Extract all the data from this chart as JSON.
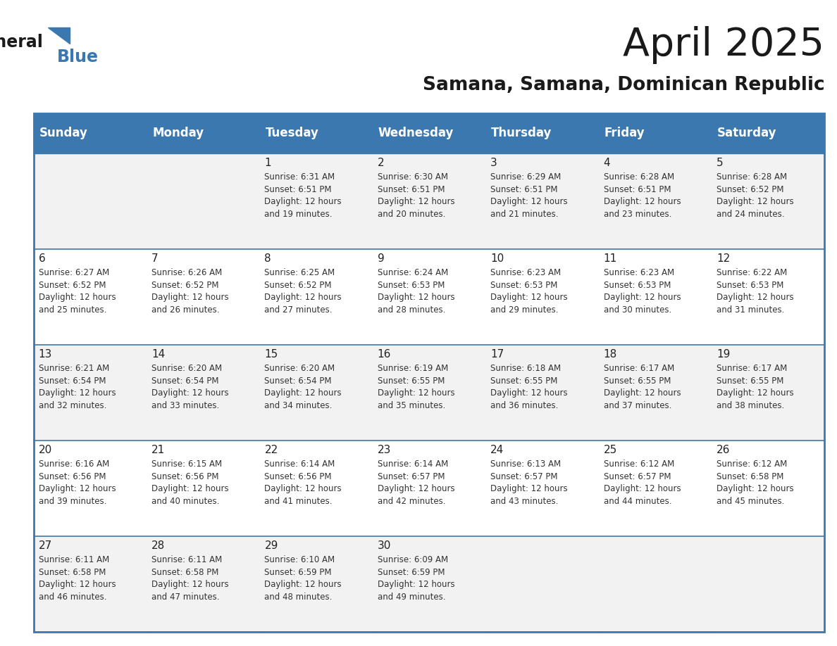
{
  "title": "April 2025",
  "subtitle": "Samana, Samana, Dominican Republic",
  "header_bg": "#3B78B0",
  "header_text_color": "#FFFFFF",
  "cell_bg_light": "#F2F2F2",
  "cell_bg_white": "#FFFFFF",
  "text_color": "#333333",
  "border_color": "#3B78B0",
  "days_of_week": [
    "Sunday",
    "Monday",
    "Tuesday",
    "Wednesday",
    "Thursday",
    "Friday",
    "Saturday"
  ],
  "weeks": [
    [
      {
        "day": "",
        "sunrise": "",
        "sunset": "",
        "daylight": ""
      },
      {
        "day": "",
        "sunrise": "",
        "sunset": "",
        "daylight": ""
      },
      {
        "day": "1",
        "sunrise": "Sunrise: 6:31 AM",
        "sunset": "Sunset: 6:51 PM",
        "daylight": "Daylight: 12 hours\nand 19 minutes."
      },
      {
        "day": "2",
        "sunrise": "Sunrise: 6:30 AM",
        "sunset": "Sunset: 6:51 PM",
        "daylight": "Daylight: 12 hours\nand 20 minutes."
      },
      {
        "day": "3",
        "sunrise": "Sunrise: 6:29 AM",
        "sunset": "Sunset: 6:51 PM",
        "daylight": "Daylight: 12 hours\nand 21 minutes."
      },
      {
        "day": "4",
        "sunrise": "Sunrise: 6:28 AM",
        "sunset": "Sunset: 6:51 PM",
        "daylight": "Daylight: 12 hours\nand 23 minutes."
      },
      {
        "day": "5",
        "sunrise": "Sunrise: 6:28 AM",
        "sunset": "Sunset: 6:52 PM",
        "daylight": "Daylight: 12 hours\nand 24 minutes."
      }
    ],
    [
      {
        "day": "6",
        "sunrise": "Sunrise: 6:27 AM",
        "sunset": "Sunset: 6:52 PM",
        "daylight": "Daylight: 12 hours\nand 25 minutes."
      },
      {
        "day": "7",
        "sunrise": "Sunrise: 6:26 AM",
        "sunset": "Sunset: 6:52 PM",
        "daylight": "Daylight: 12 hours\nand 26 minutes."
      },
      {
        "day": "8",
        "sunrise": "Sunrise: 6:25 AM",
        "sunset": "Sunset: 6:52 PM",
        "daylight": "Daylight: 12 hours\nand 27 minutes."
      },
      {
        "day": "9",
        "sunrise": "Sunrise: 6:24 AM",
        "sunset": "Sunset: 6:53 PM",
        "daylight": "Daylight: 12 hours\nand 28 minutes."
      },
      {
        "day": "10",
        "sunrise": "Sunrise: 6:23 AM",
        "sunset": "Sunset: 6:53 PM",
        "daylight": "Daylight: 12 hours\nand 29 minutes."
      },
      {
        "day": "11",
        "sunrise": "Sunrise: 6:23 AM",
        "sunset": "Sunset: 6:53 PM",
        "daylight": "Daylight: 12 hours\nand 30 minutes."
      },
      {
        "day": "12",
        "sunrise": "Sunrise: 6:22 AM",
        "sunset": "Sunset: 6:53 PM",
        "daylight": "Daylight: 12 hours\nand 31 minutes."
      }
    ],
    [
      {
        "day": "13",
        "sunrise": "Sunrise: 6:21 AM",
        "sunset": "Sunset: 6:54 PM",
        "daylight": "Daylight: 12 hours\nand 32 minutes."
      },
      {
        "day": "14",
        "sunrise": "Sunrise: 6:20 AM",
        "sunset": "Sunset: 6:54 PM",
        "daylight": "Daylight: 12 hours\nand 33 minutes."
      },
      {
        "day": "15",
        "sunrise": "Sunrise: 6:20 AM",
        "sunset": "Sunset: 6:54 PM",
        "daylight": "Daylight: 12 hours\nand 34 minutes."
      },
      {
        "day": "16",
        "sunrise": "Sunrise: 6:19 AM",
        "sunset": "Sunset: 6:55 PM",
        "daylight": "Daylight: 12 hours\nand 35 minutes."
      },
      {
        "day": "17",
        "sunrise": "Sunrise: 6:18 AM",
        "sunset": "Sunset: 6:55 PM",
        "daylight": "Daylight: 12 hours\nand 36 minutes."
      },
      {
        "day": "18",
        "sunrise": "Sunrise: 6:17 AM",
        "sunset": "Sunset: 6:55 PM",
        "daylight": "Daylight: 12 hours\nand 37 minutes."
      },
      {
        "day": "19",
        "sunrise": "Sunrise: 6:17 AM",
        "sunset": "Sunset: 6:55 PM",
        "daylight": "Daylight: 12 hours\nand 38 minutes."
      }
    ],
    [
      {
        "day": "20",
        "sunrise": "Sunrise: 6:16 AM",
        "sunset": "Sunset: 6:56 PM",
        "daylight": "Daylight: 12 hours\nand 39 minutes."
      },
      {
        "day": "21",
        "sunrise": "Sunrise: 6:15 AM",
        "sunset": "Sunset: 6:56 PM",
        "daylight": "Daylight: 12 hours\nand 40 minutes."
      },
      {
        "day": "22",
        "sunrise": "Sunrise: 6:14 AM",
        "sunset": "Sunset: 6:56 PM",
        "daylight": "Daylight: 12 hours\nand 41 minutes."
      },
      {
        "day": "23",
        "sunrise": "Sunrise: 6:14 AM",
        "sunset": "Sunset: 6:57 PM",
        "daylight": "Daylight: 12 hours\nand 42 minutes."
      },
      {
        "day": "24",
        "sunrise": "Sunrise: 6:13 AM",
        "sunset": "Sunset: 6:57 PM",
        "daylight": "Daylight: 12 hours\nand 43 minutes."
      },
      {
        "day": "25",
        "sunrise": "Sunrise: 6:12 AM",
        "sunset": "Sunset: 6:57 PM",
        "daylight": "Daylight: 12 hours\nand 44 minutes."
      },
      {
        "day": "26",
        "sunrise": "Sunrise: 6:12 AM",
        "sunset": "Sunset: 6:58 PM",
        "daylight": "Daylight: 12 hours\nand 45 minutes."
      }
    ],
    [
      {
        "day": "27",
        "sunrise": "Sunrise: 6:11 AM",
        "sunset": "Sunset: 6:58 PM",
        "daylight": "Daylight: 12 hours\nand 46 minutes."
      },
      {
        "day": "28",
        "sunrise": "Sunrise: 6:11 AM",
        "sunset": "Sunset: 6:58 PM",
        "daylight": "Daylight: 12 hours\nand 47 minutes."
      },
      {
        "day": "29",
        "sunrise": "Sunrise: 6:10 AM",
        "sunset": "Sunset: 6:59 PM",
        "daylight": "Daylight: 12 hours\nand 48 minutes."
      },
      {
        "day": "30",
        "sunrise": "Sunrise: 6:09 AM",
        "sunset": "Sunset: 6:59 PM",
        "daylight": "Daylight: 12 hours\nand 49 minutes."
      },
      {
        "day": "",
        "sunrise": "",
        "sunset": "",
        "daylight": ""
      },
      {
        "day": "",
        "sunrise": "",
        "sunset": "",
        "daylight": ""
      },
      {
        "day": "",
        "sunrise": "",
        "sunset": "",
        "daylight": ""
      }
    ]
  ]
}
